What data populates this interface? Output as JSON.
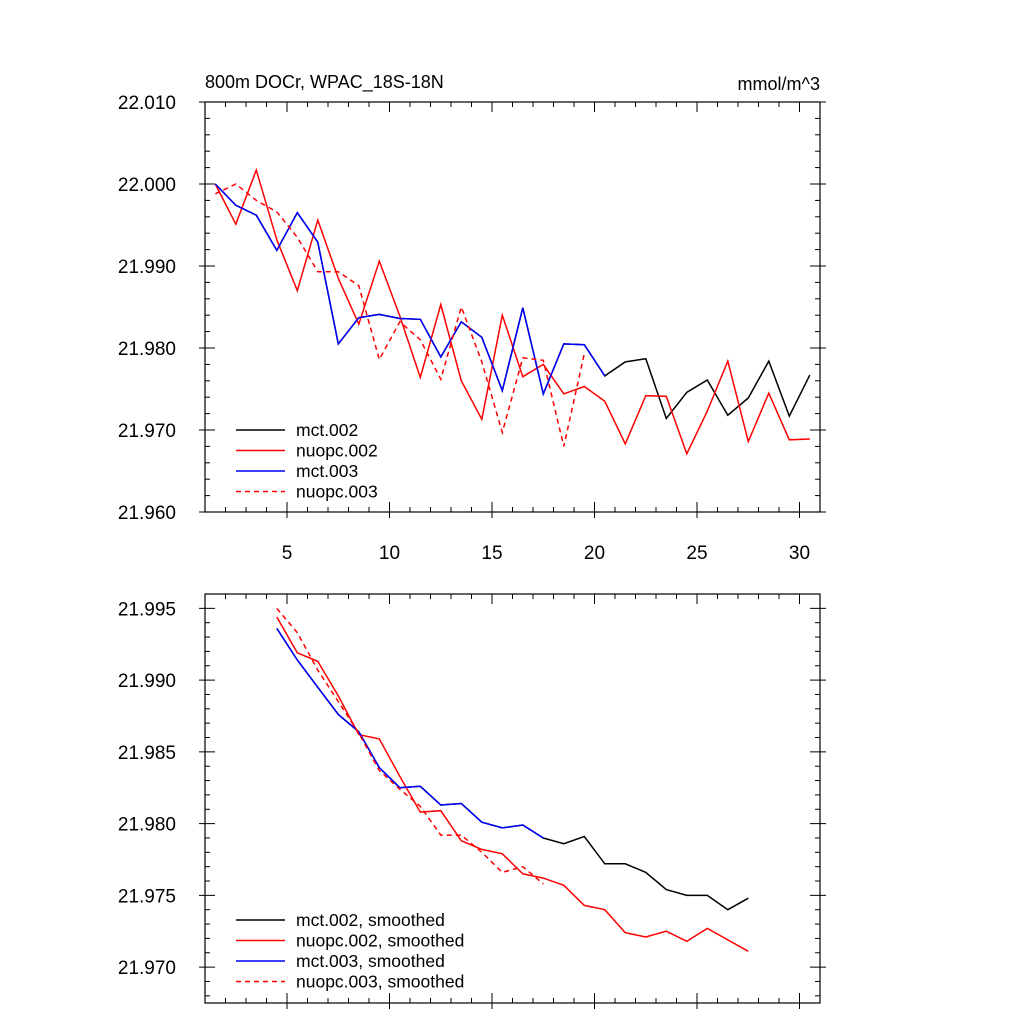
{
  "chart_data": [
    {
      "type": "line",
      "title": "800m DOCr, WPAC_18S-18N",
      "units": "mmol/m^3",
      "xlim": [
        1,
        31
      ],
      "ylim": [
        21.96,
        22.01
      ],
      "xticks": [
        5,
        10,
        15,
        20,
        25,
        30
      ],
      "yticks": [
        21.96,
        21.97,
        21.98,
        21.99,
        22.0,
        22.01
      ],
      "ytick_labels": [
        "21.960",
        "21.970",
        "21.980",
        "21.990",
        "22.000",
        "22.010"
      ],
      "xtick_labels": [
        "5",
        "10",
        "15",
        "20",
        "25",
        "30"
      ],
      "legend_position": "bottom-left",
      "series": [
        {
          "name": "mct.002",
          "color": "#000000",
          "dash": "solid",
          "x": [
            1.5,
            2.5,
            3.5,
            4.5,
            5.5,
            6.5,
            7.5,
            8.5,
            9.5,
            10.5,
            11.5,
            12.5,
            13.5,
            14.5,
            15.5,
            16.5,
            17.5,
            18.5,
            19.5,
            20.5,
            21.5,
            22.5,
            23.5,
            24.5,
            25.5,
            26.5,
            27.5,
            28.5,
            29.5,
            30.5
          ],
          "values": [
            22.0,
            21.9974,
            21.9962,
            21.9919,
            21.9965,
            21.9929,
            21.9805,
            21.9837,
            21.9841,
            21.9836,
            21.9835,
            21.9789,
            21.9832,
            21.9813,
            21.9748,
            21.9849,
            21.9744,
            21.9805,
            21.9804,
            21.9766,
            21.9783,
            21.9787,
            21.9714,
            21.9746,
            21.9761,
            21.9718,
            21.9739,
            21.9784,
            21.9717,
            21.9767
          ]
        },
        {
          "name": "nuopc.002",
          "color": "#ff0000",
          "dash": "solid",
          "x": [
            1.5,
            2.5,
            3.5,
            4.5,
            5.5,
            6.5,
            7.5,
            8.5,
            9.5,
            10.5,
            11.5,
            12.5,
            13.5,
            14.5,
            15.5,
            16.5,
            17.5,
            18.5,
            19.5,
            20.5,
            21.5,
            22.5,
            23.5,
            24.5,
            25.5,
            26.5,
            27.5,
            28.5,
            29.5,
            30.5
          ],
          "values": [
            22.0,
            21.9951,
            22.0017,
            21.9932,
            21.987,
            21.9956,
            21.9885,
            21.9829,
            21.9906,
            21.9839,
            21.9764,
            21.9853,
            21.976,
            21.9713,
            21.984,
            21.9765,
            21.978,
            21.9744,
            21.9753,
            21.9735,
            21.9683,
            21.9742,
            21.9741,
            21.9671,
            21.9723,
            21.9784,
            21.9686,
            21.9745,
            21.9688,
            21.9689
          ]
        },
        {
          "name": "mct.003",
          "color": "#0000ff",
          "dash": "solid",
          "x": [
            1.5,
            2.5,
            3.5,
            4.5,
            5.5,
            6.5,
            7.5,
            8.5,
            9.5,
            10.5,
            11.5,
            12.5,
            13.5,
            14.5,
            15.5,
            16.5,
            17.5,
            18.5,
            19.5,
            20.5
          ],
          "values": [
            22.0,
            21.9974,
            21.9962,
            21.9919,
            21.9965,
            21.9929,
            21.9805,
            21.9837,
            21.9841,
            21.9836,
            21.9835,
            21.9789,
            21.9832,
            21.9813,
            21.9748,
            21.9849,
            21.9744,
            21.9805,
            21.9804,
            21.9766
          ]
        },
        {
          "name": "nuopc.003",
          "color": "#ff0000",
          "dash": "dashed",
          "x": [
            1.5,
            2.5,
            3.5,
            4.5,
            5.5,
            6.5,
            7.5,
            8.5,
            9.5,
            10.5,
            11.5,
            12.5,
            13.5,
            14.5,
            15.5,
            16.5,
            17.5,
            18.5,
            19.5
          ],
          "values": [
            21.9988,
            22.0,
            21.998,
            21.9966,
            21.9935,
            21.9893,
            21.9893,
            21.9876,
            21.9786,
            21.9832,
            21.981,
            21.9762,
            21.985,
            21.9783,
            21.9697,
            21.9788,
            21.9785,
            21.968,
            21.9793
          ]
        }
      ]
    },
    {
      "type": "line",
      "title": "",
      "xlim": [
        1,
        31
      ],
      "ylim": [
        21.9675,
        21.996
      ],
      "xticks": [
        5,
        10,
        15,
        20,
        25,
        30
      ],
      "yticks": [
        21.97,
        21.975,
        21.98,
        21.985,
        21.99,
        21.995
      ],
      "ytick_labels": [
        "21.970",
        "21.975",
        "21.980",
        "21.985",
        "21.990",
        "21.995"
      ],
      "legend_position": "bottom-left",
      "series": [
        {
          "name": "mct.002, smoothed",
          "color": "#000000",
          "dash": "solid",
          "x": [
            4.5,
            5.5,
            6.5,
            7.5,
            8.5,
            9.5,
            10.5,
            11.5,
            12.5,
            13.5,
            14.5,
            15.5,
            16.5,
            17.5,
            18.5,
            19.5,
            20.5,
            21.5,
            22.5,
            23.5,
            24.5,
            25.5,
            26.5,
            27.5
          ],
          "values": [
            21.9936,
            21.9914,
            21.9895,
            21.9876,
            21.9864,
            21.9839,
            21.9825,
            21.9826,
            21.9813,
            21.9814,
            21.9801,
            21.9797,
            21.9799,
            21.979,
            21.9786,
            21.9791,
            21.9772,
            21.9772,
            21.9766,
            21.9754,
            21.975,
            21.975,
            21.974,
            21.9748
          ]
        },
        {
          "name": "nuopc.002, smoothed",
          "color": "#ff0000",
          "dash": "solid",
          "x": [
            4.5,
            5.5,
            6.5,
            7.5,
            8.5,
            9.5,
            10.5,
            11.5,
            12.5,
            13.5,
            14.5,
            15.5,
            16.5,
            17.5,
            18.5,
            19.5,
            20.5,
            21.5,
            22.5,
            23.5,
            24.5,
            25.5,
            26.5,
            27.5
          ],
          "values": [
            21.9944,
            21.9919,
            21.9913,
            21.9889,
            21.9862,
            21.9859,
            21.9833,
            21.9808,
            21.9809,
            21.9788,
            21.9782,
            21.9779,
            21.9765,
            21.9762,
            21.9757,
            21.9743,
            21.974,
            21.9724,
            21.9721,
            21.9725,
            21.9718,
            21.9727,
            21.9719,
            21.9711
          ]
        },
        {
          "name": "mct.003, smoothed",
          "color": "#0000ff",
          "dash": "solid",
          "x": [
            4.5,
            5.5,
            6.5,
            7.5,
            8.5,
            9.5,
            10.5,
            11.5,
            12.5,
            13.5,
            14.5,
            15.5,
            16.5,
            17.5
          ],
          "values": [
            21.9936,
            21.9914,
            21.9895,
            21.9876,
            21.9864,
            21.9839,
            21.9825,
            21.9826,
            21.9813,
            21.9814,
            21.9801,
            21.9797,
            21.9799,
            21.979
          ]
        },
        {
          "name": "nuopc.003, smoothed",
          "color": "#ff0000",
          "dash": "dashed",
          "x": [
            4.5,
            5.5,
            6.5,
            7.5,
            8.5,
            9.5,
            10.5,
            11.5,
            12.5,
            13.5,
            14.5,
            15.5,
            16.5,
            17.5
          ],
          "values": [
            21.995,
            21.9933,
            21.9907,
            21.9885,
            21.9863,
            21.9837,
            21.9824,
            21.9812,
            21.9792,
            21.9792,
            21.978,
            21.9766,
            21.977,
            21.9758
          ]
        }
      ]
    }
  ]
}
